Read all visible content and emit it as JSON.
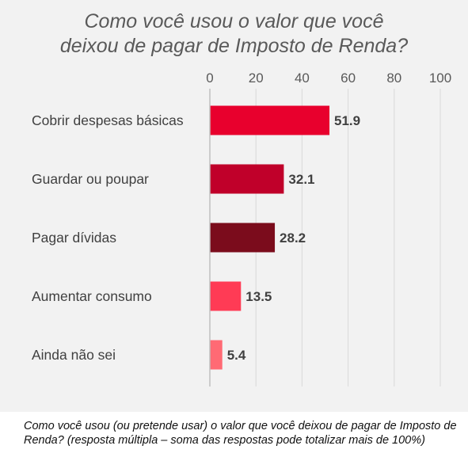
{
  "chart_data": {
    "type": "bar",
    "orientation": "horizontal",
    "title_lines": [
      "Como você usou o valor que você",
      "deixou de pagar de Imposto de Renda?"
    ],
    "categories": [
      "Cobrir despesas básicas",
      "Guardar ou poupar",
      "Pagar dívidas",
      "Aumentar consumo",
      "Ainda não sei"
    ],
    "values": [
      51.9,
      32.1,
      28.2,
      13.5,
      5.4
    ],
    "value_labels": [
      "51.9",
      "32.1",
      "28.2",
      "13.5",
      "5.4"
    ],
    "bar_colors": [
      "#e8002d",
      "#c0002a",
      "#7b0c1c",
      "#ff3b55",
      "#ff6a74"
    ],
    "xlim": [
      0,
      100
    ],
    "xticks": [
      0,
      20,
      40,
      60,
      80,
      100
    ],
    "xtick_labels": [
      "0",
      "20",
      "40",
      "60",
      "80",
      "100"
    ],
    "grid": true,
    "axis_position": "top"
  },
  "footnote": "Como você usou (ou pretende usar) o valor que você deixou de pagar de Imposto de Renda? (resposta múltipla – soma das respostas pode totalizar mais de 100%)"
}
